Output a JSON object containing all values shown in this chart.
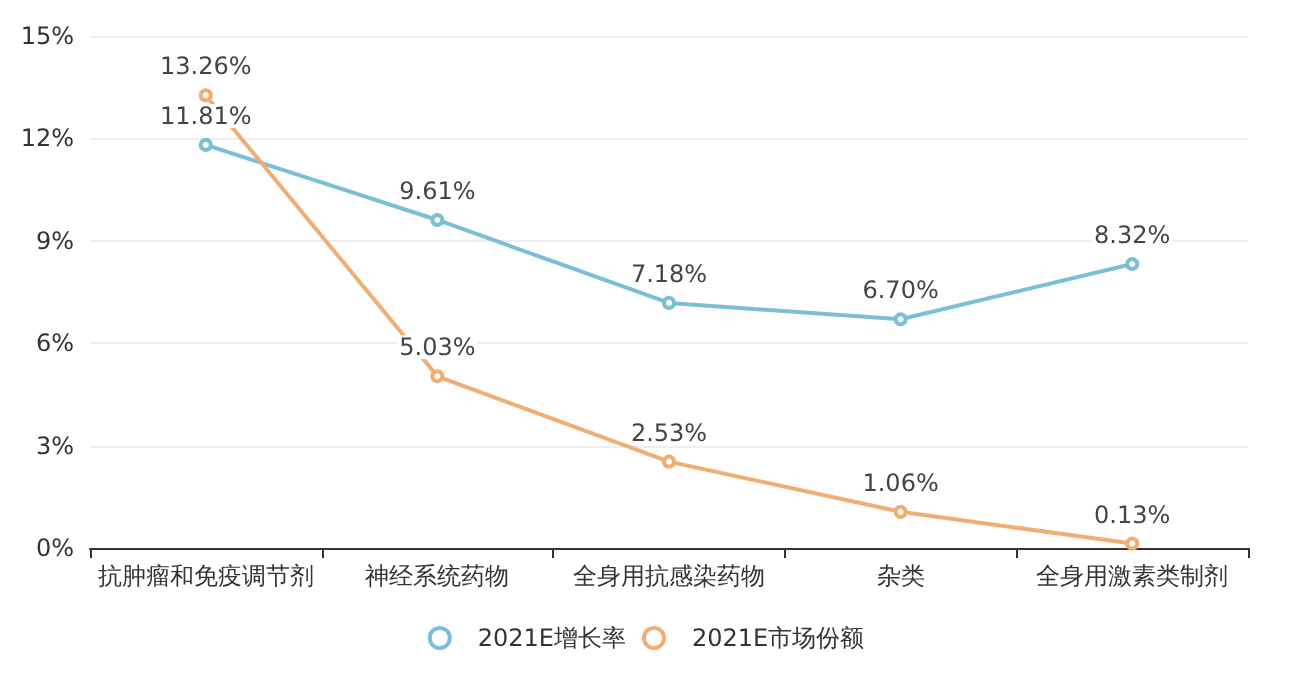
{
  "chart_data": {
    "type": "line",
    "categories": [
      "抗肿瘤和免疫调节剂",
      "神经系统药物",
      "全身用抗感染药物",
      "杂类",
      "全身用激素类制剂"
    ],
    "series": [
      {
        "name": "2021E增长率",
        "color": "#7bbfd6",
        "values": [
          11.81,
          9.61,
          7.18,
          6.7,
          8.32
        ],
        "value_labels": [
          "11.81%",
          "9.61%",
          "7.18%",
          "6.70%",
          "8.32%"
        ]
      },
      {
        "name": "2021E市场份额",
        "color": "#f0ae73",
        "values": [
          13.26,
          5.03,
          2.53,
          1.06,
          0.13
        ],
        "value_labels": [
          "13.26%",
          "5.03%",
          "2.53%",
          "1.06%",
          "0.13%"
        ]
      }
    ],
    "ylim": [
      0,
      15
    ],
    "yticks": [
      {
        "value": 0,
        "label": "0%"
      },
      {
        "value": 3,
        "label": "3%"
      },
      {
        "value": 6,
        "label": "6%"
      },
      {
        "value": 9,
        "label": "9%"
      },
      {
        "value": 12,
        "label": "12%"
      },
      {
        "value": 15,
        "label": "15%"
      }
    ],
    "grid": "y",
    "legend": "bottom",
    "marker": "circle",
    "line_style": "solid"
  }
}
